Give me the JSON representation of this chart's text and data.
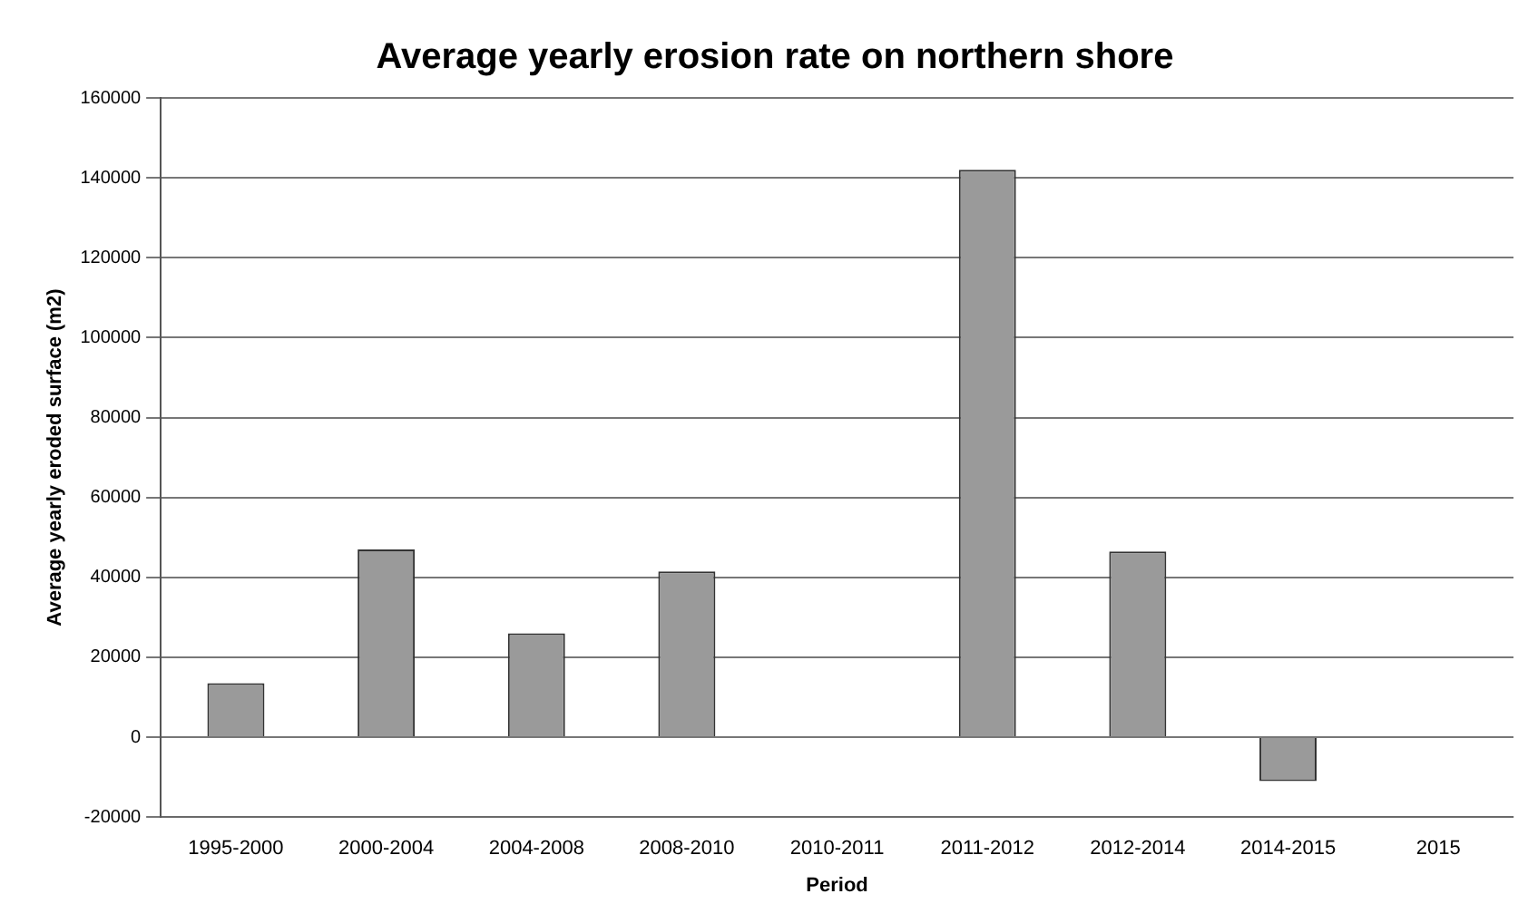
{
  "chart_data": {
    "type": "bar",
    "title": "Average yearly erosion rate on northern shore",
    "xlabel": "Period",
    "ylabel": "Average yearly eroded surface (m2)",
    "categories": [
      "1995-2000",
      "2000-2004",
      "2004-2008",
      "2008-2010",
      "2010-2011",
      "2011-2012",
      "2012-2014",
      "2014-2015",
      "2015"
    ],
    "values": [
      13500,
      47000,
      26000,
      41500,
      0,
      142000,
      46500,
      -11000,
      0
    ],
    "color": "#9a9a9a",
    "ylim": [
      -20000,
      160000
    ],
    "yticks": [
      -20000,
      0,
      20000,
      40000,
      60000,
      80000,
      100000,
      120000,
      140000,
      160000
    ],
    "grid": "y",
    "legend": false
  }
}
